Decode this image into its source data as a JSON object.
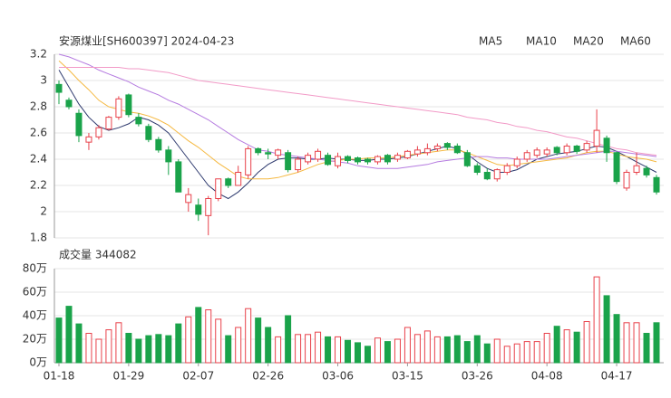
{
  "chart_data": [
    {
      "type": "candlestick",
      "title": "安源煤业[SH600397] 2024-04-23",
      "up_color": "#e8414a",
      "down_color": "#1aa34a",
      "open": [
        2.97,
        2.85,
        2.75,
        2.53,
        2.57,
        2.63,
        2.72,
        2.89,
        2.72,
        2.65,
        2.55,
        2.47,
        2.38,
        2.07,
        2.05,
        1.97,
        2.1,
        2.25,
        2.2,
        2.28,
        2.48,
        2.45,
        2.43,
        2.45,
        2.32,
        2.38,
        2.4,
        2.43,
        2.35,
        2.42,
        2.41,
        2.4,
        2.38,
        2.43,
        2.4,
        2.41,
        2.44,
        2.45,
        2.48,
        2.52,
        2.5,
        2.45,
        2.35,
        2.3,
        2.25,
        2.3,
        2.35,
        2.4,
        2.43,
        2.44,
        2.49,
        2.45,
        2.5,
        2.47,
        2.5,
        2.56,
        2.45,
        2.18,
        2.3,
        2.33,
        2.26
      ],
      "high": [
        3.0,
        2.87,
        2.78,
        2.6,
        2.66,
        2.73,
        2.88,
        2.9,
        2.75,
        2.67,
        2.57,
        2.5,
        2.4,
        2.18,
        2.1,
        2.12,
        2.25,
        2.26,
        2.35,
        2.5,
        2.49,
        2.48,
        2.48,
        2.47,
        2.42,
        2.45,
        2.48,
        2.45,
        2.45,
        2.43,
        2.42,
        2.41,
        2.43,
        2.44,
        2.45,
        2.47,
        2.5,
        2.52,
        2.52,
        2.53,
        2.52,
        2.47,
        2.37,
        2.33,
        2.33,
        2.37,
        2.42,
        2.47,
        2.49,
        2.49,
        2.5,
        2.52,
        2.51,
        2.54,
        2.78,
        2.58,
        2.46,
        2.32,
        2.45,
        2.35,
        2.28
      ],
      "low": [
        2.82,
        2.78,
        2.53,
        2.47,
        2.55,
        2.62,
        2.7,
        2.72,
        2.65,
        2.53,
        2.45,
        2.28,
        2.15,
        2.0,
        1.93,
        1.82,
        2.08,
        2.18,
        2.2,
        2.25,
        2.43,
        2.4,
        2.4,
        2.3,
        2.3,
        2.36,
        2.38,
        2.35,
        2.33,
        2.37,
        2.36,
        2.36,
        2.36,
        2.36,
        2.38,
        2.4,
        2.42,
        2.43,
        2.46,
        2.47,
        2.44,
        2.34,
        2.28,
        2.24,
        2.23,
        2.28,
        2.33,
        2.38,
        2.41,
        2.42,
        2.43,
        2.43,
        2.44,
        2.45,
        2.45,
        2.38,
        2.21,
        2.16,
        2.28,
        2.26,
        2.13
      ],
      "close": [
        2.91,
        2.8,
        2.58,
        2.57,
        2.64,
        2.72,
        2.86,
        2.74,
        2.67,
        2.55,
        2.47,
        2.38,
        2.15,
        2.13,
        1.98,
        2.1,
        2.25,
        2.2,
        2.3,
        2.48,
        2.45,
        2.44,
        2.47,
        2.32,
        2.4,
        2.43,
        2.46,
        2.36,
        2.42,
        2.39,
        2.38,
        2.38,
        2.42,
        2.38,
        2.43,
        2.46,
        2.47,
        2.48,
        2.5,
        2.49,
        2.45,
        2.35,
        2.3,
        2.25,
        2.32,
        2.35,
        2.4,
        2.45,
        2.47,
        2.47,
        2.45,
        2.5,
        2.46,
        2.52,
        2.62,
        2.45,
        2.23,
        2.3,
        2.35,
        2.28,
        2.15
      ],
      "series": [
        {
          "name": "MA5",
          "color": "#2e3a6e",
          "values": [
            3.08,
            2.95,
            2.82,
            2.72,
            2.65,
            2.62,
            2.64,
            2.67,
            2.72,
            2.7,
            2.66,
            2.6,
            2.5,
            2.4,
            2.3,
            2.2,
            2.14,
            2.1,
            2.15,
            2.22,
            2.3,
            2.36,
            2.4,
            2.41,
            2.41,
            2.4,
            2.4,
            2.41,
            2.4,
            2.4,
            2.39,
            2.39,
            2.4,
            2.4,
            2.41,
            2.42,
            2.44,
            2.46,
            2.48,
            2.5,
            2.48,
            2.44,
            2.38,
            2.33,
            2.3,
            2.3,
            2.32,
            2.36,
            2.4,
            2.42,
            2.44,
            2.45,
            2.46,
            2.48,
            2.5,
            2.49,
            2.46,
            2.42,
            2.38,
            2.34,
            2.3
          ]
        },
        {
          "name": "MA10",
          "color": "#f5b942",
          "values": [
            3.15,
            3.08,
            3.0,
            2.93,
            2.85,
            2.8,
            2.78,
            2.76,
            2.75,
            2.73,
            2.7,
            2.66,
            2.6,
            2.54,
            2.49,
            2.43,
            2.37,
            2.32,
            2.27,
            2.25,
            2.25,
            2.25,
            2.26,
            2.28,
            2.3,
            2.33,
            2.36,
            2.38,
            2.39,
            2.4,
            2.4,
            2.41,
            2.41,
            2.41,
            2.42,
            2.43,
            2.44,
            2.45,
            2.46,
            2.47,
            2.47,
            2.45,
            2.42,
            2.39,
            2.36,
            2.35,
            2.36,
            2.37,
            2.38,
            2.39,
            2.4,
            2.41,
            2.43,
            2.45,
            2.46,
            2.46,
            2.44,
            2.42,
            2.41,
            2.4,
            2.38
          ]
        },
        {
          "name": "MA20",
          "color": "#b57be0",
          "values": [
            3.2,
            3.18,
            3.15,
            3.12,
            3.08,
            3.05,
            3.02,
            2.99,
            2.95,
            2.92,
            2.89,
            2.85,
            2.82,
            2.78,
            2.74,
            2.7,
            2.65,
            2.6,
            2.55,
            2.51,
            2.47,
            2.46,
            2.44,
            2.43,
            2.42,
            2.41,
            2.4,
            2.39,
            2.38,
            2.37,
            2.35,
            2.34,
            2.33,
            2.33,
            2.33,
            2.34,
            2.35,
            2.36,
            2.38,
            2.39,
            2.4,
            2.41,
            2.42,
            2.42,
            2.41,
            2.41,
            2.4,
            2.4,
            2.4,
            2.4,
            2.41,
            2.42,
            2.43,
            2.44,
            2.45,
            2.46,
            2.46,
            2.45,
            2.44,
            2.43,
            2.42
          ]
        },
        {
          "name": "MA60",
          "color": "#f29ac7",
          "values": [
            3.1,
            3.1,
            3.1,
            3.1,
            3.1,
            3.1,
            3.1,
            3.09,
            3.09,
            3.08,
            3.07,
            3.06,
            3.04,
            3.02,
            3.0,
            2.99,
            2.98,
            2.97,
            2.96,
            2.95,
            2.94,
            2.93,
            2.92,
            2.91,
            2.9,
            2.89,
            2.88,
            2.87,
            2.86,
            2.85,
            2.84,
            2.83,
            2.82,
            2.81,
            2.8,
            2.79,
            2.78,
            2.77,
            2.76,
            2.75,
            2.74,
            2.72,
            2.71,
            2.7,
            2.68,
            2.67,
            2.65,
            2.64,
            2.62,
            2.61,
            2.59,
            2.57,
            2.56,
            2.54,
            2.52,
            2.5,
            2.48,
            2.47,
            2.45,
            2.44,
            2.43
          ]
        }
      ],
      "ylim": [
        1.8,
        3.2
      ],
      "yticks": [
        3.2,
        3,
        2.8,
        2.6,
        2.4,
        2.2,
        2,
        1.8
      ],
      "grid": true
    },
    {
      "type": "bar",
      "title": "成交量 344082",
      "categories": [
        "01-18",
        null,
        null,
        null,
        null,
        null,
        null,
        "01-29",
        null,
        null,
        null,
        null,
        null,
        null,
        "02-07",
        null,
        null,
        null,
        null,
        null,
        null,
        "02-26",
        null,
        null,
        null,
        null,
        null,
        null,
        "03-06",
        null,
        null,
        null,
        null,
        null,
        null,
        "03-15",
        null,
        null,
        null,
        null,
        null,
        null,
        "03-26",
        null,
        null,
        null,
        null,
        null,
        null,
        "04-08",
        null,
        null,
        null,
        null,
        null,
        null,
        "04-17",
        null,
        null,
        null,
        null
      ],
      "values": [
        38,
        48,
        33,
        25,
        20,
        28,
        34,
        25,
        20,
        23,
        24,
        23,
        33,
        39,
        47,
        45,
        37,
        23,
        30,
        46,
        38,
        30,
        22,
        40,
        24,
        24,
        26,
        22,
        22,
        19,
        17,
        14,
        21,
        18,
        20,
        30,
        24,
        27,
        22,
        22,
        23,
        18,
        23,
        16,
        20,
        14,
        16,
        18,
        18,
        25,
        31,
        28,
        26,
        35,
        73,
        57,
        41,
        34,
        34,
        25,
        34
      ],
      "ylim": [
        0,
        80
      ],
      "yticks": [
        {
          "value": 80,
          "label": "80万"
        },
        {
          "value": 60,
          "label": "60万"
        },
        {
          "value": 40,
          "label": "40万"
        },
        {
          "value": 20,
          "label": "20万"
        },
        {
          "value": 0,
          "label": "0万"
        }
      ],
      "grid": true
    }
  ]
}
